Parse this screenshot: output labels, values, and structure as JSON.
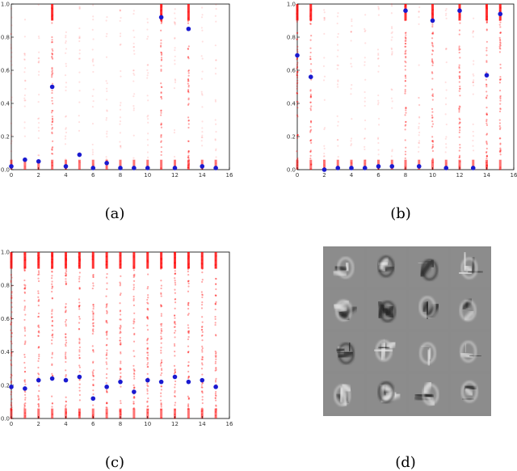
{
  "panels": [
    {
      "caption": "(a)"
    },
    {
      "caption": "(b)"
    },
    {
      "caption": "(c)"
    },
    {
      "caption": "(d)"
    }
  ],
  "chart_data": [
    {
      "type": "scatter",
      "title": "",
      "xlabel": "",
      "ylabel": "",
      "xlim": [
        0,
        16
      ],
      "ylim": [
        0,
        1
      ],
      "xticks": [
        0,
        2,
        4,
        6,
        8,
        10,
        12,
        14,
        16
      ],
      "yticks": [
        0.0,
        0.2,
        0.4,
        0.6,
        0.8,
        1.0
      ],
      "xticklabels": [
        "0",
        "2",
        "4",
        "6",
        "8",
        "10",
        "12",
        "14",
        "16"
      ],
      "yticklabels": [
        "0.0",
        "0.2",
        "0.4",
        "0.6",
        "0.8",
        "1.0"
      ],
      "grid": false,
      "series": [
        {
          "color": "#1a1ad0",
          "x": [
            0,
            1,
            2,
            3,
            4,
            5,
            6,
            7,
            8,
            9,
            10,
            11,
            12,
            13,
            14,
            15
          ],
          "y": [
            0.02,
            0.06,
            0.05,
            0.5,
            0.02,
            0.09,
            0.01,
            0.04,
            0.01,
            0.01,
            0.01,
            0.92,
            0.01,
            0.85,
            0.02,
            0.01
          ]
        }
      ],
      "distribution_color": "#ff0000",
      "dense_columns": [
        3,
        11,
        13
      ]
    },
    {
      "type": "scatter",
      "title": "",
      "xlabel": "",
      "ylabel": "",
      "xlim": [
        0,
        16
      ],
      "ylim": [
        0,
        1
      ],
      "xticks": [
        0,
        2,
        4,
        6,
        8,
        10,
        12,
        14,
        16
      ],
      "yticks": [
        0.0,
        0.2,
        0.4,
        0.6,
        0.8,
        1.0
      ],
      "xticklabels": [
        "0",
        "2",
        "4",
        "6",
        "8",
        "10",
        "12",
        "14",
        "16"
      ],
      "yticklabels": [
        "0.0",
        "0.2",
        "0.4",
        "0.6",
        "0.8",
        "1.0"
      ],
      "grid": false,
      "series": [
        {
          "color": "#1a1ad0",
          "x": [
            0,
            1,
            2,
            3,
            4,
            5,
            6,
            7,
            8,
            9,
            10,
            11,
            12,
            13,
            14,
            15
          ],
          "y": [
            0.69,
            0.56,
            0.0,
            0.01,
            0.01,
            0.01,
            0.02,
            0.02,
            0.96,
            0.02,
            0.9,
            0.01,
            0.96,
            0.01,
            0.57,
            0.94
          ]
        }
      ],
      "distribution_color": "#ff0000",
      "dense_columns": [
        0,
        1,
        8,
        10,
        12,
        14,
        15
      ]
    },
    {
      "type": "scatter",
      "title": "",
      "xlabel": "",
      "ylabel": "",
      "xlim": [
        0,
        16
      ],
      "ylim": [
        0,
        1
      ],
      "xticks": [
        0,
        2,
        4,
        6,
        8,
        10,
        12,
        14,
        16
      ],
      "yticks": [
        0.0,
        0.2,
        0.4,
        0.6,
        0.8,
        1.0
      ],
      "xticklabels": [
        "0",
        "2",
        "4",
        "6",
        "8",
        "10",
        "12",
        "14",
        "16"
      ],
      "yticklabels": [
        "0.0",
        "0.2",
        "0.4",
        "0.6",
        "0.8",
        "1.0"
      ],
      "grid": false,
      "series": [
        {
          "color": "#1a1ad0",
          "x": [
            0,
            1,
            2,
            3,
            4,
            5,
            6,
            7,
            8,
            9,
            10,
            11,
            12,
            13,
            14,
            15
          ],
          "y": [
            0.19,
            0.18,
            0.23,
            0.24,
            0.23,
            0.25,
            0.12,
            0.19,
            0.22,
            0.16,
            0.23,
            0.22,
            0.25,
            0.22,
            0.23,
            0.19
          ]
        }
      ],
      "distribution_color": "#ff0000",
      "dense_columns": [
        0,
        1,
        2,
        3,
        4,
        5,
        6,
        7,
        8,
        9,
        10,
        11,
        12,
        13,
        14,
        15
      ]
    }
  ]
}
